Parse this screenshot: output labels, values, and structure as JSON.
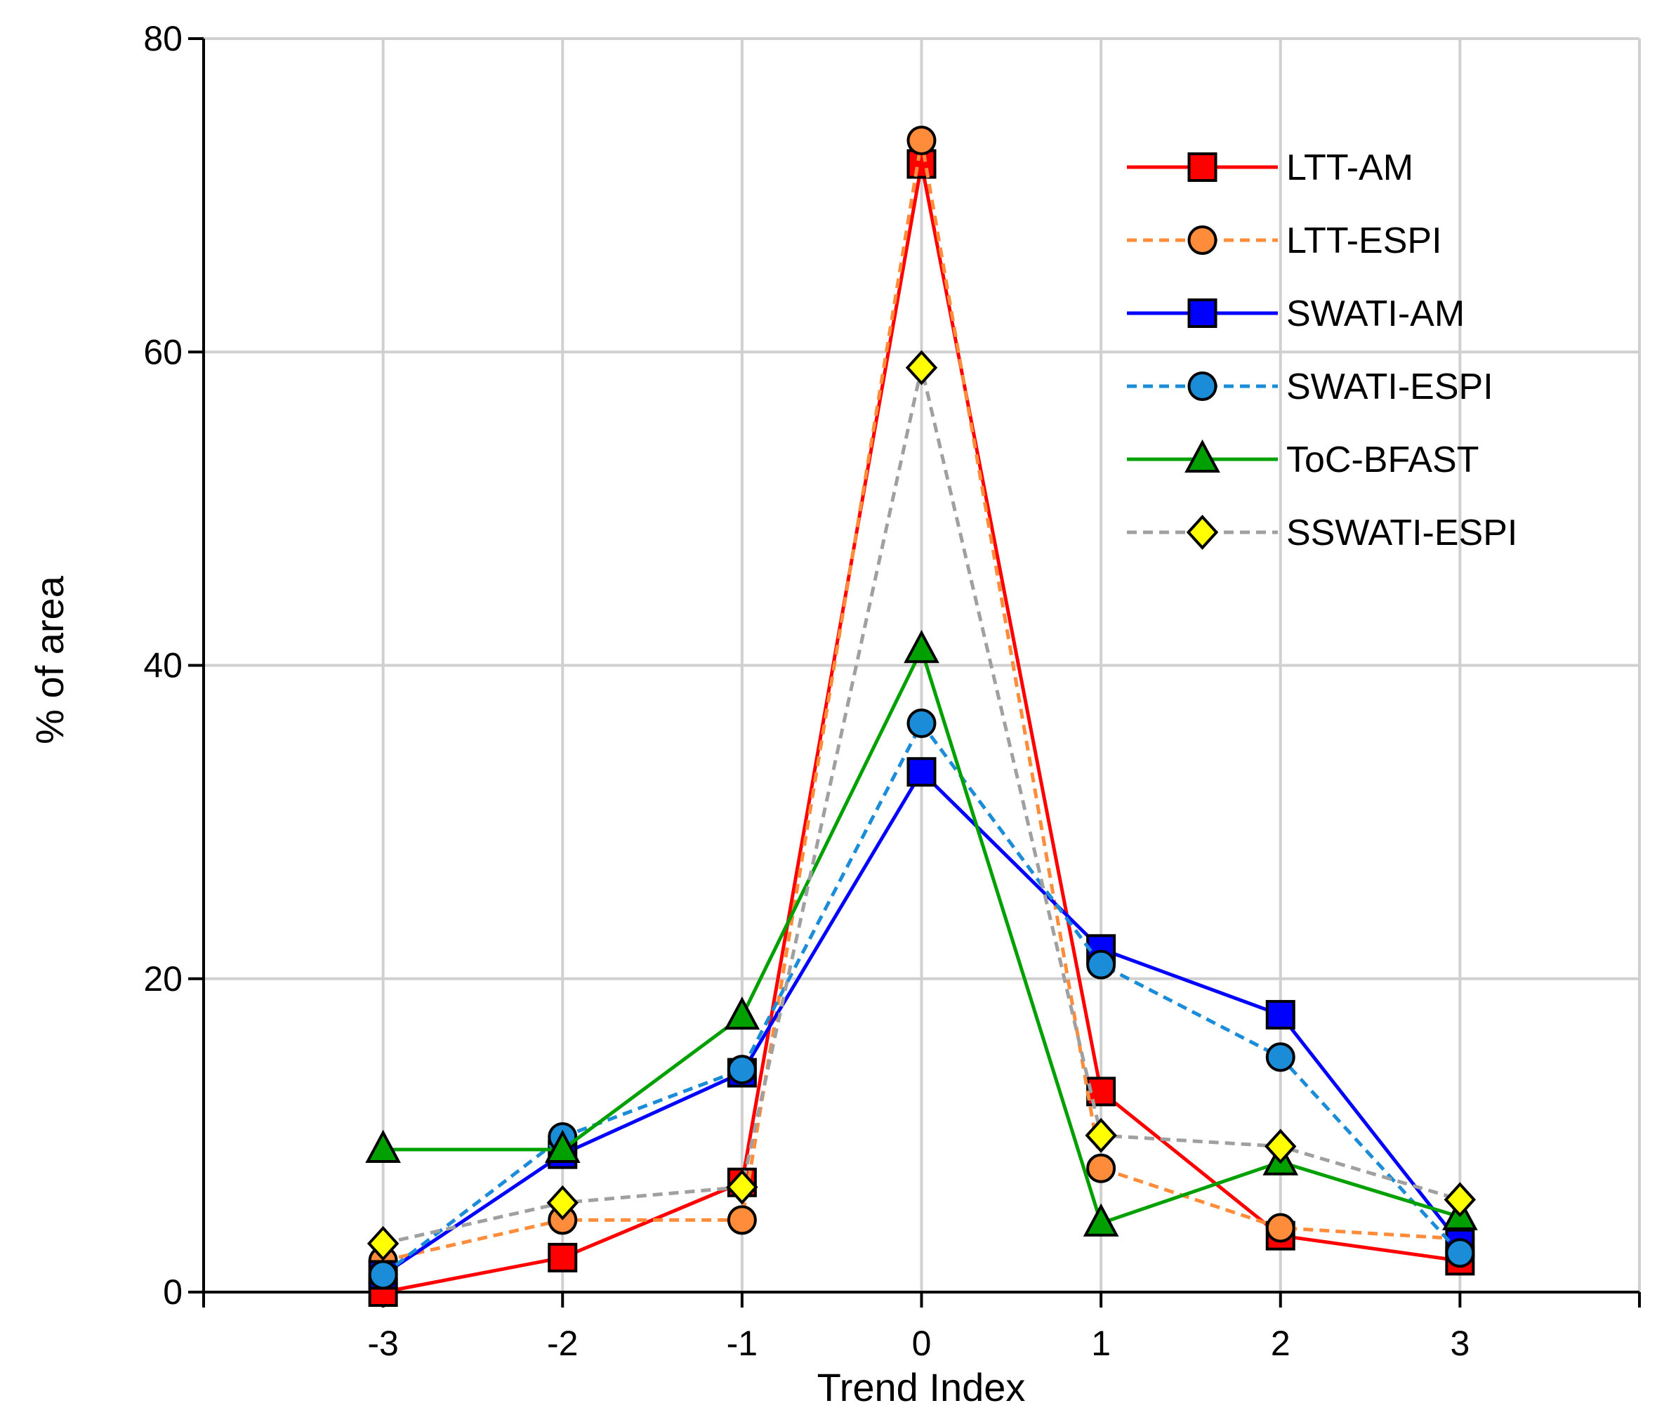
{
  "chart_data": {
    "type": "line",
    "title": "",
    "xlabel": "Trend Index",
    "ylabel": "% of area",
    "x": [
      -3,
      -2,
      -1,
      0,
      1,
      2,
      3
    ],
    "xlim": [
      -4,
      4
    ],
    "ylim": [
      0,
      80
    ],
    "xticks": [
      "-3",
      "-2",
      "-1",
      "0",
      "1",
      "2",
      "3"
    ],
    "yticks": [
      "0",
      "20",
      "40",
      "60",
      "80"
    ],
    "grid": true,
    "legend_position": "top-right",
    "series": [
      {
        "name": "LTT-AM",
        "values": [
          0,
          2.2,
          7.0,
          72.0,
          12.8,
          3.6,
          2.0
        ],
        "color": "#ff0000",
        "dash": "solid",
        "marker": "square",
        "marker_fill": "#ff0000"
      },
      {
        "name": "LTT-ESPI",
        "values": [
          2.0,
          4.6,
          4.6,
          73.5,
          7.9,
          4.1,
          3.4
        ],
        "color": "#ff8c3a",
        "dash": "dashed",
        "marker": "circle",
        "marker_fill": "#ff8c3a"
      },
      {
        "name": "SWATI-AM",
        "values": [
          1.1,
          8.8,
          14.0,
          33.2,
          21.9,
          17.7,
          3.1
        ],
        "color": "#0000ff",
        "dash": "solid",
        "marker": "square",
        "marker_fill": "#0000ff"
      },
      {
        "name": "SWATI-ESPI",
        "values": [
          1.1,
          9.9,
          14.2,
          36.3,
          20.9,
          15.0,
          2.5
        ],
        "color": "#1a8cd8",
        "dash": "dashed",
        "marker": "circle",
        "marker_fill": "#1a8cd8"
      },
      {
        "name": "ToC-BFAST",
        "values": [
          9.1,
          9.1,
          17.6,
          41.0,
          4.4,
          8.3,
          4.8
        ],
        "color": "#00a000",
        "dash": "solid",
        "marker": "triangle",
        "marker_fill": "#00a000"
      },
      {
        "name": "SSWATI-ESPI",
        "values": [
          3.1,
          5.7,
          6.7,
          59.0,
          10.0,
          9.3,
          5.9
        ],
        "color": "#a0a0a0",
        "dash": "dashed",
        "marker": "diamond",
        "marker_fill": "#ffff00"
      }
    ]
  }
}
